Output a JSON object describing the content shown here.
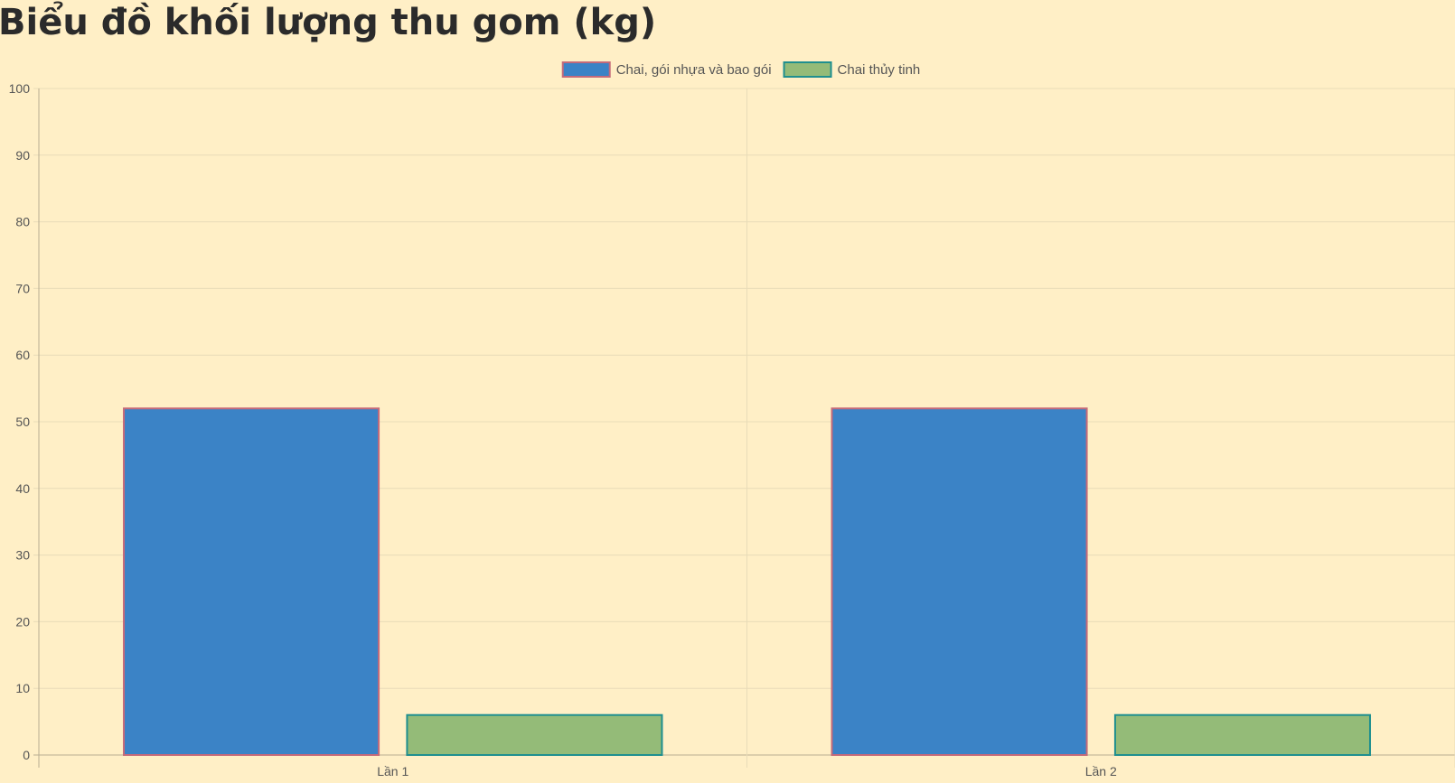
{
  "page": {
    "title": "Biểu đồ khối lượng thu gom (kg)"
  },
  "chart_data": {
    "type": "bar",
    "title": "Biểu đồ khối lượng thu gom (kg)",
    "categories": [
      "Lần 1",
      "Lần 2"
    ],
    "series": [
      {
        "name": "Chai, gói nhựa và bao gói",
        "values": [
          52,
          52
        ],
        "fill": "#3b83c6",
        "stroke": "#c46a7a"
      },
      {
        "name": "Chai thủy tinh",
        "values": [
          6,
          6
        ],
        "fill": "#94bb78",
        "stroke": "#1f8f8f"
      }
    ],
    "ylim": [
      0,
      100
    ],
    "yticks": [
      0,
      10,
      20,
      30,
      40,
      50,
      60,
      70,
      80,
      90,
      100
    ],
    "xlabel": "",
    "ylabel": "",
    "grid": true,
    "legend": "top-center",
    "colors": {
      "background": "#ffefc6",
      "grid": "#e8dcb8",
      "axis": "#b8ad92"
    }
  }
}
